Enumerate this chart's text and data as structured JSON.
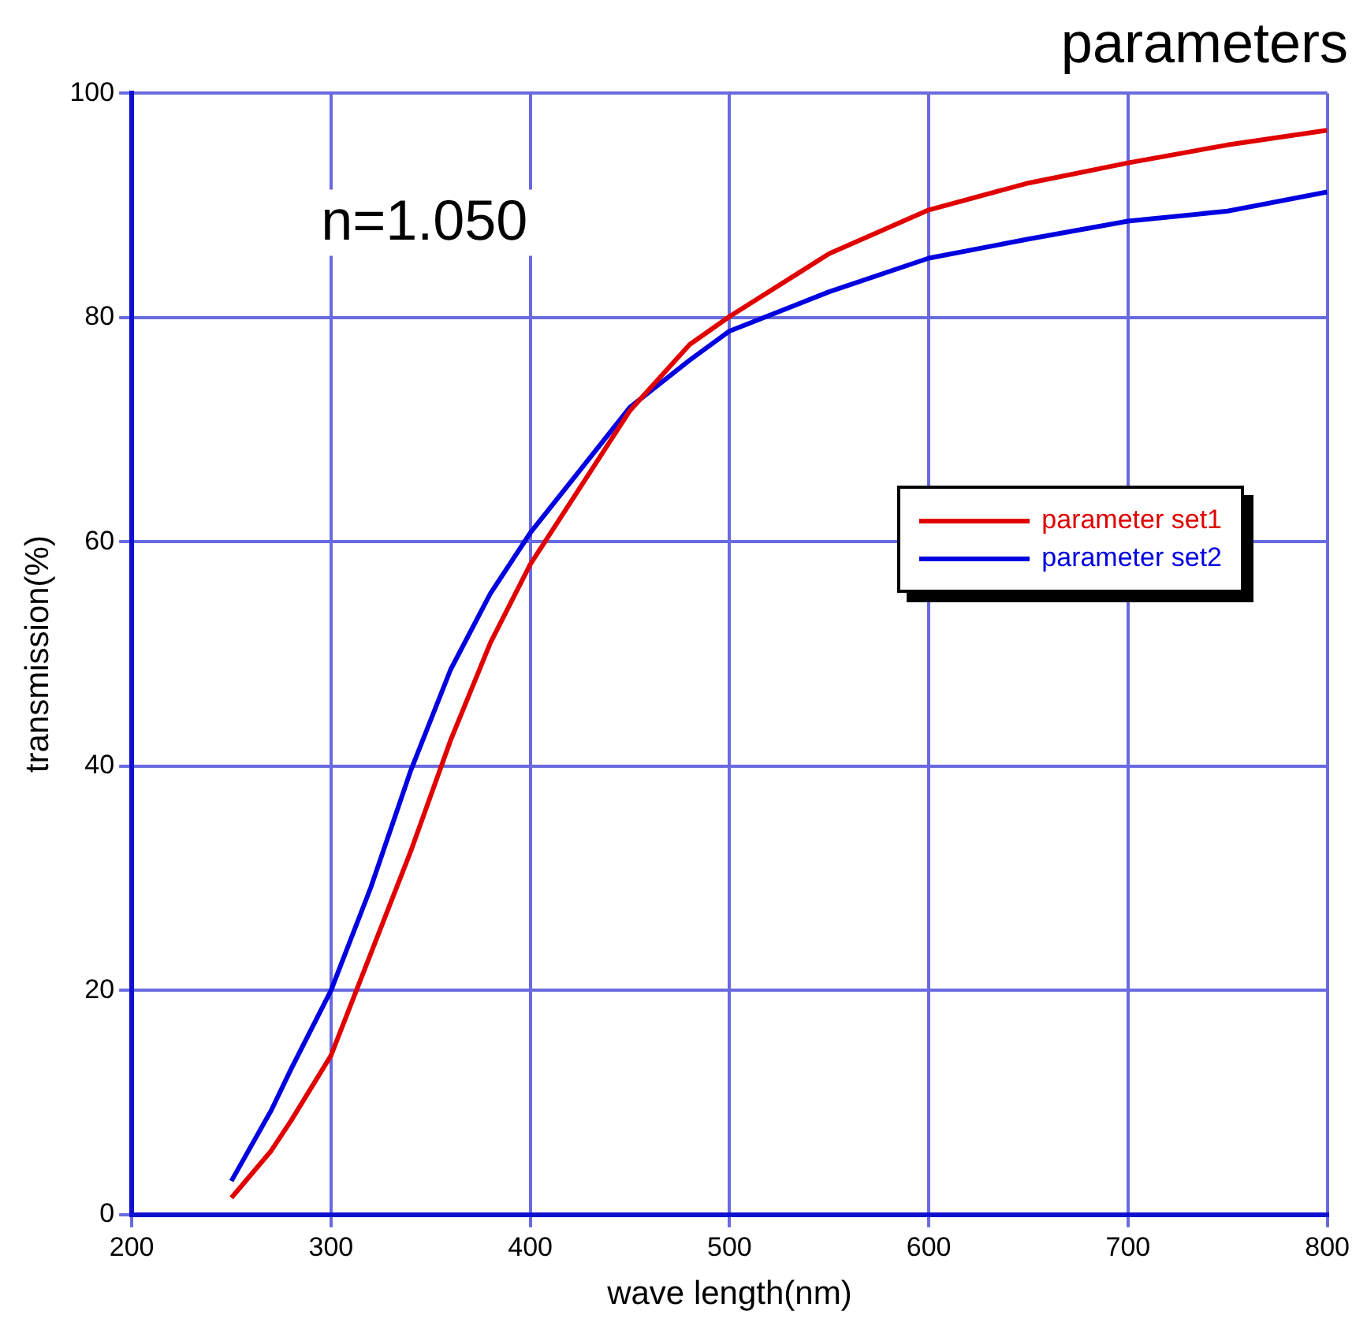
{
  "chart_data": {
    "type": "line",
    "title": "parameters",
    "xlabel": "wave length(nm)",
    "ylabel": "transmission(%)",
    "annotations": [
      "n=1.050"
    ],
    "x": [
      250,
      270,
      280,
      300,
      320,
      340,
      360,
      380,
      400,
      450,
      480,
      500,
      550,
      600,
      650,
      700,
      750,
      800
    ],
    "series": [
      {
        "name": "parameter set1",
        "color": "#e00000",
        "values": [
          1.5,
          5.7,
          8.4,
          14.2,
          23.3,
          32.4,
          42.3,
          51,
          58,
          71.7,
          77.6,
          80.1,
          85.7,
          89.6,
          92,
          93.8,
          95.4,
          96.7
        ]
      },
      {
        "name": "parameter set2",
        "color": "#0000e0",
        "values": [
          3,
          9.3,
          13,
          20,
          29.2,
          39.6,
          48.6,
          55.4,
          60.8,
          72,
          76.2,
          78.8,
          82.3,
          85.3,
          87,
          88.6,
          89.5,
          91.2
        ]
      }
    ],
    "xlim": [
      200,
      800
    ],
    "xticks": [
      200,
      300,
      400,
      500,
      600,
      700,
      800
    ],
    "ylim": [
      0,
      100
    ],
    "yticks": [
      0,
      20,
      40,
      60,
      80,
      100
    ],
    "grid": true,
    "legend": "right",
    "marker": "none",
    "line_style": "solid"
  }
}
